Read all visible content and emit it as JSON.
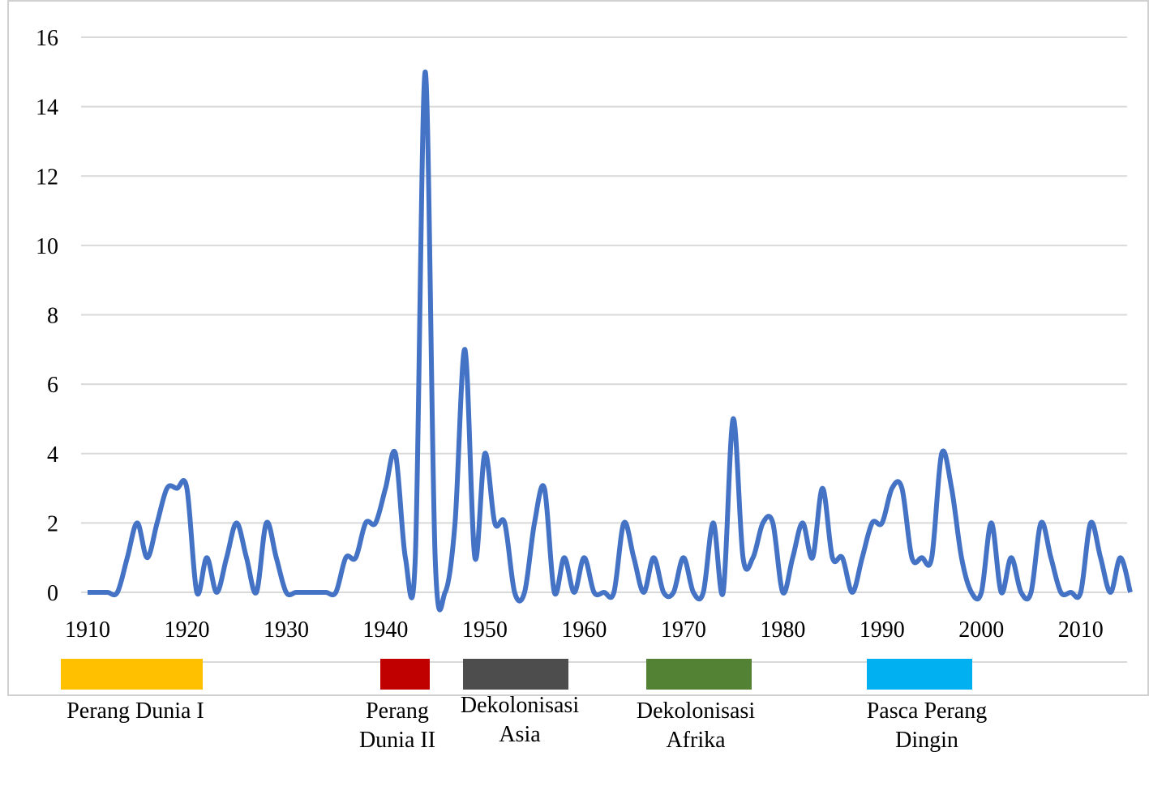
{
  "chart_data": {
    "type": "line",
    "x": [
      1910,
      1911,
      1912,
      1913,
      1914,
      1915,
      1916,
      1917,
      1918,
      1919,
      1920,
      1921,
      1922,
      1923,
      1924,
      1925,
      1926,
      1927,
      1928,
      1929,
      1930,
      1931,
      1932,
      1933,
      1934,
      1935,
      1936,
      1937,
      1938,
      1939,
      1940,
      1941,
      1942,
      1943,
      1944,
      1945,
      1946,
      1947,
      1948,
      1949,
      1950,
      1951,
      1952,
      1953,
      1954,
      1955,
      1956,
      1957,
      1958,
      1959,
      1960,
      1961,
      1962,
      1963,
      1964,
      1965,
      1966,
      1967,
      1968,
      1969,
      1970,
      1971,
      1972,
      1973,
      1974,
      1975,
      1976,
      1977,
      1978,
      1979,
      1980,
      1981,
      1982,
      1983,
      1984,
      1985,
      1986,
      1987,
      1988,
      1989,
      1990,
      1991,
      1992,
      1993,
      1994,
      1995,
      1996,
      1997,
      1998,
      1999,
      2000,
      2001,
      2002,
      2003,
      2004,
      2005,
      2006,
      2007,
      2008,
      2009,
      2010,
      2011,
      2012,
      2013,
      2014,
      2015
    ],
    "series": [
      {
        "color": "#4472c4",
        "values": [
          0,
          0,
          0,
          0,
          1,
          2,
          1,
          2,
          3,
          3,
          3,
          0,
          1,
          0,
          1,
          2,
          1,
          0,
          2,
          1,
          0,
          0,
          0,
          0,
          0,
          0,
          1,
          1,
          2,
          2,
          3,
          4,
          1,
          1,
          15,
          1,
          0,
          2,
          7,
          1,
          4,
          2,
          2,
          0,
          0,
          2,
          3,
          0,
          1,
          0,
          1,
          0,
          0,
          0,
          2,
          1,
          0,
          1,
          0,
          0,
          1,
          0,
          0,
          2,
          0,
          5,
          1,
          1,
          2,
          2,
          0,
          1,
          2,
          1,
          3,
          1,
          1,
          0,
          1,
          2,
          2,
          3,
          3,
          1,
          1,
          1,
          4,
          3,
          1,
          0,
          0,
          2,
          0,
          1,
          0,
          0,
          2,
          1,
          0,
          0,
          0,
          2,
          1,
          0,
          1,
          0
        ]
      }
    ],
    "xlim": [
      1910,
      2015
    ],
    "xticks": [
      1910,
      1920,
      1930,
      1940,
      1950,
      1960,
      1970,
      1980,
      1990,
      2000,
      2010
    ],
    "ylim": [
      0,
      16
    ],
    "yticks": [
      0,
      2,
      4,
      6,
      8,
      10,
      12,
      14,
      16
    ],
    "grid": true,
    "periods": [
      {
        "label": "Perang Dunia I",
        "color": "#ffc000"
      },
      {
        "label": "Perang Dunia II",
        "color": "#c00000"
      },
      {
        "label": "Dekolonisasi Asia",
        "color": "#4d4d4d"
      },
      {
        "label": "Dekolonisasi Afrika",
        "color": "#548235"
      },
      {
        "label": "Pasca Perang Dingin",
        "color": "#00b0f0"
      }
    ]
  }
}
